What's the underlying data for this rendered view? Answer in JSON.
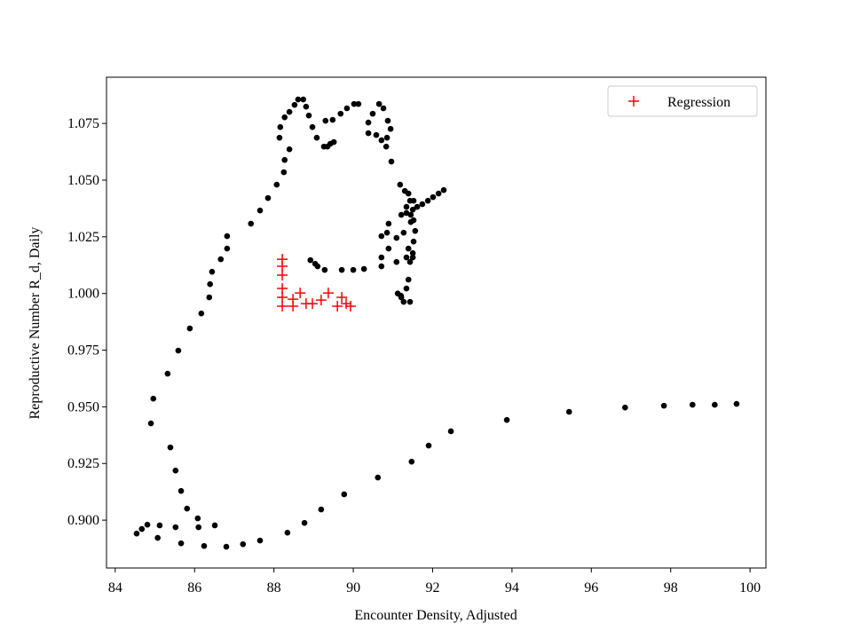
{
  "chart_data": {
    "type": "scatter",
    "xlabel": "Encounter Density, Adjusted",
    "ylabel": "Reproductive Number R_d, Daily",
    "xlim": [
      83.78,
      100.4
    ],
    "ylim": [
      0.8789,
      1.0954
    ],
    "xticks": [
      84,
      86,
      88,
      90,
      92,
      94,
      96,
      98,
      100
    ],
    "yticks": [
      {
        "value": 0.9,
        "label": "0.900"
      },
      0.925,
      {
        "value": 0.95,
        "label": "0.950"
      },
      0.975,
      {
        "value": 1.0,
        "label": "1.000"
      },
      1.025,
      {
        "value": 1.05,
        "label": "1.050"
      },
      1.075
    ],
    "legend": "upper right",
    "series": [
      {
        "color": "#000000",
        "marker": "o",
        "x": [
          99.66,
          99.11,
          98.55,
          97.83,
          96.85,
          95.44,
          93.87,
          92.46,
          91.9,
          91.47,
          90.62,
          89.77,
          89.19,
          88.77,
          88.34,
          87.65,
          87.22,
          86.8,
          86.24,
          85.66,
          85.07,
          84.54,
          84.67,
          84.81,
          85.12,
          85.52,
          86.08,
          86.1,
          86.51,
          85.81,
          85.66,
          85.52,
          85.39,
          84.9,
          84.96,
          85.32,
          85.59,
          85.88,
          86.17,
          86.37,
          86.39,
          86.44,
          86.66,
          86.82,
          86.82,
          87.42,
          87.65,
          87.85,
          88.07,
          88.25,
          88.27,
          88.39,
          88.14,
          88.16,
          88.27,
          88.39,
          88.52,
          88.61,
          88.74,
          88.81,
          88.88,
          88.97,
          89.08,
          89.26,
          89.42,
          89.35,
          89.51,
          89.3,
          89.48,
          89.68,
          89.84,
          90.02,
          90.13,
          90.38,
          90.38,
          90.49,
          90.65,
          90.76,
          90.87,
          90.94,
          90.85,
          90.71,
          90.58,
          90.83,
          90.96,
          91.18,
          92.28,
          92.15,
          92.01,
          91.88,
          91.74,
          91.61,
          91.5,
          91.34,
          91.21,
          90.89,
          90.85,
          90.71,
          91.09,
          90.89,
          90.71,
          91.34,
          91.09,
          90.71,
          90.27,
          90.0,
          89.71,
          89.28,
          89.1,
          89.04,
          88.92,
          91.3,
          91.39,
          91.43,
          91.34,
          91.45,
          91.52,
          91.56,
          91.52,
          91.5,
          91.43,
          91.39,
          91.34,
          91.27,
          91.43,
          91.21,
          91.52,
          91.45,
          91.27,
          91.39,
          91.5,
          91.12,
          91.2
        ],
        "values": [
          0.9513,
          0.9509,
          0.9509,
          0.9505,
          0.9497,
          0.9478,
          0.9442,
          0.9392,
          0.9329,
          0.9258,
          0.9188,
          0.9114,
          0.9047,
          0.8988,
          0.8945,
          0.891,
          0.8894,
          0.8883,
          0.8886,
          0.8898,
          0.8922,
          0.8941,
          0.8961,
          0.898,
          0.8977,
          0.8969,
          0.9008,
          0.8969,
          0.8977,
          0.9051,
          0.9129,
          0.9219,
          0.9321,
          0.9427,
          0.9536,
          0.9646,
          0.9748,
          0.9846,
          0.9912,
          0.9983,
          1.0041,
          1.0096,
          1.0151,
          1.0198,
          1.0253,
          1.0308,
          1.0366,
          1.0421,
          1.048,
          1.0535,
          1.0589,
          1.0636,
          1.0687,
          1.0734,
          1.0777,
          1.0801,
          1.0832,
          1.0856,
          1.0856,
          1.0824,
          1.0785,
          1.0734,
          1.0687,
          1.0648,
          1.066,
          1.0648,
          1.0668,
          1.0762,
          1.0766,
          1.0793,
          1.0817,
          1.0836,
          1.0836,
          1.0707,
          1.0754,
          1.0793,
          1.0836,
          1.0817,
          1.0762,
          1.0726,
          1.0687,
          1.0676,
          1.0699,
          1.0648,
          1.0582,
          1.048,
          1.0456,
          1.0441,
          1.0425,
          1.0409,
          1.0394,
          1.0382,
          1.037,
          1.0355,
          1.0347,
          1.0308,
          1.0268,
          1.0253,
          1.0245,
          1.0198,
          1.0159,
          1.0159,
          1.0139,
          1.012,
          1.0108,
          1.0104,
          1.0104,
          1.0104,
          1.012,
          1.0131,
          1.0147,
          1.0452,
          1.0441,
          1.0409,
          1.0382,
          1.0347,
          1.0323,
          1.0276,
          1.0229,
          1.0178,
          1.0139,
          1.0061,
          1.0022,
          0.9963,
          0.9963,
          0.9983,
          1.0409,
          1.0315,
          1.0268,
          1.0198,
          1.0159,
          1.0,
          0.999
        ]
      },
      {
        "name": "Regression",
        "color": "#ff0000",
        "marker": "+",
        "x": [
          88.21,
          88.21,
          88.21,
          88.21,
          88.21,
          88.21,
          88.48,
          88.66,
          88.81,
          88.97,
          89.19,
          89.37,
          89.6,
          89.71,
          89.82,
          89.93,
          88.48
        ],
        "values": [
          1.0151,
          1.012,
          1.0081,
          1.0022,
          0.9983,
          0.9944,
          0.9975,
          1.0002,
          0.9955,
          0.9955,
          0.9971,
          1.0002,
          0.9944,
          0.9983,
          0.9955,
          0.9944,
          0.9944
        ]
      }
    ]
  }
}
